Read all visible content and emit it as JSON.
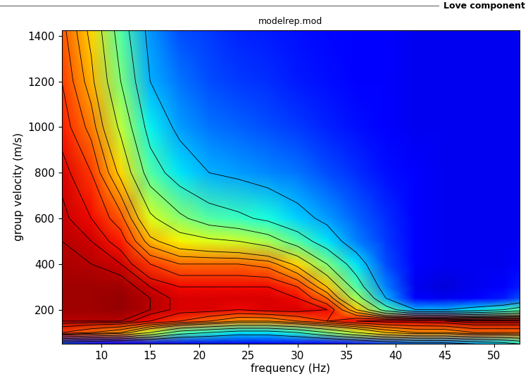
{
  "chart_data": {
    "type": "heatmap",
    "title": "modelrep.mod",
    "subtitle": "Love component",
    "x_label": "frequency (Hz)",
    "y_label": "group velocity (m/s)",
    "color": "jet",
    "x": [
      6,
      9,
      12,
      15,
      18,
      21,
      24,
      27,
      30,
      33,
      36,
      39,
      42,
      45,
      48,
      51,
      52.6
    ],
    "y": [
      50,
      100,
      150,
      200,
      250,
      300,
      400,
      500,
      600,
      800,
      1000,
      1200,
      1425
    ],
    "cells": [
      [
        0.2,
        0.15,
        0.12,
        0.1,
        0.1,
        0.1,
        0.1,
        0.12,
        0.12,
        0.12,
        0.15,
        0.2,
        0.25,
        0.25,
        0.3,
        0.35,
        0.4
      ],
      [
        0.85,
        0.8,
        0.75,
        0.6,
        0.45,
        0.4,
        0.35,
        0.35,
        0.4,
        0.5,
        0.6,
        0.7,
        0.75,
        0.75,
        0.8,
        0.8,
        0.8
      ],
      [
        0.95,
        0.95,
        0.95,
        0.9,
        0.85,
        0.8,
        0.75,
        0.75,
        0.8,
        0.85,
        0.9,
        0.92,
        0.92,
        0.93,
        0.95,
        0.95,
        0.95
      ],
      [
        0.97,
        0.97,
        0.98,
        0.95,
        0.92,
        0.92,
        0.9,
        0.92,
        0.92,
        0.9,
        0.7,
        0.45,
        0.3,
        0.3,
        0.35,
        0.4,
        0.45
      ],
      [
        0.97,
        0.97,
        0.98,
        0.95,
        0.92,
        0.92,
        0.92,
        0.92,
        0.9,
        0.8,
        0.55,
        0.3,
        0.12,
        0.1,
        0.12,
        0.15,
        0.2
      ],
      [
        0.97,
        0.97,
        0.97,
        0.93,
        0.9,
        0.9,
        0.9,
        0.9,
        0.85,
        0.7,
        0.45,
        0.25,
        0.1,
        0.08,
        0.1,
        0.12,
        0.15
      ],
      [
        0.96,
        0.95,
        0.93,
        0.85,
        0.8,
        0.8,
        0.8,
        0.78,
        0.68,
        0.5,
        0.35,
        0.2,
        0.12,
        0.1,
        0.1,
        0.1,
        0.12
      ],
      [
        0.95,
        0.93,
        0.88,
        0.72,
        0.65,
        0.62,
        0.6,
        0.55,
        0.45,
        0.35,
        0.25,
        0.18,
        0.12,
        0.1,
        0.1,
        0.1,
        0.1
      ],
      [
        0.94,
        0.9,
        0.82,
        0.62,
        0.52,
        0.45,
        0.42,
        0.38,
        0.33,
        0.28,
        0.22,
        0.17,
        0.12,
        0.1,
        0.1,
        0.1,
        0.1
      ],
      [
        0.92,
        0.85,
        0.68,
        0.45,
        0.35,
        0.3,
        0.28,
        0.26,
        0.24,
        0.2,
        0.17,
        0.14,
        0.12,
        0.1,
        0.1,
        0.1,
        0.1
      ],
      [
        0.88,
        0.78,
        0.58,
        0.36,
        0.28,
        0.24,
        0.22,
        0.2,
        0.18,
        0.16,
        0.14,
        0.12,
        0.1,
        0.1,
        0.1,
        0.1,
        0.1
      ],
      [
        0.85,
        0.72,
        0.5,
        0.3,
        0.24,
        0.2,
        0.18,
        0.17,
        0.15,
        0.14,
        0.12,
        0.11,
        0.1,
        0.1,
        0.1,
        0.1,
        0.1
      ],
      [
        0.82,
        0.68,
        0.45,
        0.27,
        0.2,
        0.18,
        0.16,
        0.15,
        0.14,
        0.13,
        0.12,
        0.11,
        0.1,
        0.1,
        0.1,
        0.1,
        0.1
      ]
    ],
    "color_range": [
      0,
      1
    ],
    "contour_levels": [
      0.3,
      0.4,
      0.5,
      0.6,
      0.7,
      0.75,
      0.8,
      0.85,
      0.9,
      0.93,
      0.95
    ],
    "xlim": [
      6,
      52.6
    ],
    "ylim": [
      50,
      1425
    ],
    "xticks": [
      10,
      15,
      20,
      25,
      30,
      35,
      40,
      45,
      50
    ],
    "yticks": [
      200,
      400,
      600,
      800,
      1000,
      1200,
      1400
    ],
    "grid": false
  }
}
